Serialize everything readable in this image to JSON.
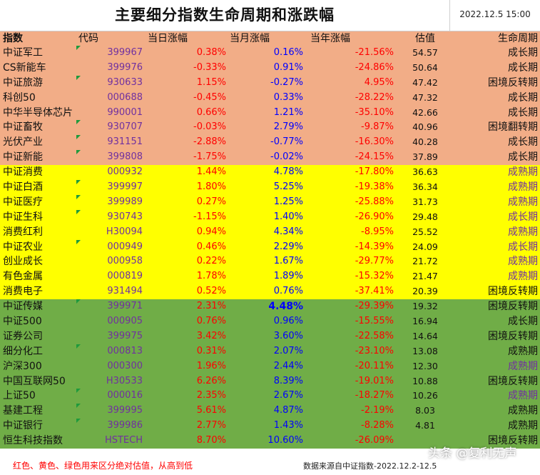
{
  "title": "主要细分指数生命周期和涨跌幅",
  "timestamp": "2022.12.5 15:00",
  "columns": {
    "name": "指数",
    "code": "代码",
    "day": "当日涨幅",
    "month": "当月涨幅",
    "year": "当年涨幅",
    "valuation": "估值",
    "cycle": "生命周期"
  },
  "colors": {
    "red_band": "#f2ad87",
    "yellow_band": "#ffff00",
    "green_band": "#70ad47",
    "code_text": "#7030a0",
    "up_text": "#ff0000",
    "month_text": "#0000ff"
  },
  "rows": [
    {
      "name": "中证军工",
      "code": "399967",
      "day": "0.38%",
      "month": "0.16%",
      "year": "-21.56%",
      "valuation": "54.57",
      "cycle": "成长期",
      "band": "red",
      "flag": true
    },
    {
      "name": "CS新能车",
      "code": "399976",
      "day": "-0.33%",
      "month": "0.91%",
      "year": "-24.86%",
      "valuation": "50.64",
      "cycle": "成长期",
      "band": "red"
    },
    {
      "name": "中证旅游",
      "code": "930633",
      "day": "1.15%",
      "month": "-0.27%",
      "year": "4.95%",
      "valuation": "47.42",
      "cycle": "困境反转期",
      "band": "red",
      "flag": true
    },
    {
      "name": "科创50",
      "code": "000688",
      "day": "-0.45%",
      "month": "0.33%",
      "year": "-28.22%",
      "valuation": "47.32",
      "cycle": "成长期",
      "band": "red"
    },
    {
      "name": "中华半导体芯片",
      "code": "990001",
      "day": "0.66%",
      "month": "1.21%",
      "year": "-35.10%",
      "valuation": "42.66",
      "cycle": "成长期",
      "band": "red"
    },
    {
      "name": "中证畜牧",
      "code": "930707",
      "day": "-0.03%",
      "month": "2.79%",
      "year": "-9.87%",
      "valuation": "40.96",
      "cycle": "困境翻转期",
      "band": "red",
      "flag": true
    },
    {
      "name": "光伏产业",
      "code": "931151",
      "day": "-2.88%",
      "month": "-0.77%",
      "year": "-16.30%",
      "valuation": "40.28",
      "cycle": "成长期",
      "band": "red",
      "flag": true
    },
    {
      "name": "中证新能",
      "code": "399808",
      "day": "-1.75%",
      "month": "-0.02%",
      "year": "-24.15%",
      "valuation": "37.89",
      "cycle": "成长期",
      "band": "red",
      "flag": true
    },
    {
      "name": "中证消费",
      "code": "000932",
      "day": "1.44%",
      "month": "4.78%",
      "year": "-17.80%",
      "valuation": "36.63",
      "cycle": "成熟期",
      "band": "yellow",
      "cycleColor": "purple"
    },
    {
      "name": "中证白酒",
      "code": "399997",
      "day": "1.80%",
      "month": "5.25%",
      "year": "-19.38%",
      "valuation": "36.34",
      "cycle": "成熟期",
      "band": "yellow",
      "cycleColor": "purple",
      "flag": true
    },
    {
      "name": "中证医疗",
      "code": "399989",
      "day": "0.27%",
      "month": "1.25%",
      "year": "-25.88%",
      "valuation": "31.73",
      "cycle": "成熟期",
      "band": "yellow",
      "cycleColor": "purple",
      "flag": true
    },
    {
      "name": "中证生科",
      "code": "930743",
      "day": "-1.15%",
      "month": "1.40%",
      "year": "-26.90%",
      "valuation": "29.48",
      "cycle": "成长期",
      "band": "yellow",
      "cycleColor": "purple",
      "flag": true
    },
    {
      "name": "消费红利",
      "code": "H30094",
      "day": "0.94%",
      "month": "4.34%",
      "year": "-8.95%",
      "valuation": "25.52",
      "cycle": "成熟期",
      "band": "yellow",
      "cycleColor": "purple"
    },
    {
      "name": "中证农业",
      "code": "000949",
      "day": "0.46%",
      "month": "2.29%",
      "year": "-14.39%",
      "valuation": "24.09",
      "cycle": "成长期",
      "band": "yellow",
      "cycleColor": "purple",
      "flag": true
    },
    {
      "name": "创业成长",
      "code": "000958",
      "day": "0.22%",
      "month": "1.67%",
      "year": "-29.77%",
      "valuation": "21.72",
      "cycle": "成熟期",
      "band": "yellow",
      "cycleColor": "purple"
    },
    {
      "name": "有色金属",
      "code": "000819",
      "day": "1.78%",
      "month": "1.89%",
      "year": "-15.32%",
      "valuation": "21.47",
      "cycle": "成熟期",
      "band": "yellow",
      "cycleColor": "purple"
    },
    {
      "name": "消费电子",
      "code": "931494",
      "day": "0.52%",
      "month": "0.76%",
      "year": "-37.41%",
      "valuation": "20.39",
      "cycle": "困境反转期",
      "band": "yellow"
    },
    {
      "name": "中证传媒",
      "code": "399971",
      "day": "2.31%",
      "month": "4.48%",
      "year": "-29.39%",
      "valuation": "19.32",
      "cycle": "困境反转期",
      "band": "green",
      "monthBig": true,
      "flag": true
    },
    {
      "name": "中证500",
      "code": "000905",
      "day": "0.76%",
      "month": "0.96%",
      "year": "-15.55%",
      "valuation": "16.94",
      "cycle": "成长期",
      "band": "green"
    },
    {
      "name": "证券公司",
      "code": "399975",
      "day": "3.42%",
      "month": "3.60%",
      "year": "-22.58%",
      "valuation": "14.64",
      "cycle": "困境反转期",
      "band": "green"
    },
    {
      "name": "细分化工",
      "code": "000813",
      "day": "0.31%",
      "month": "2.07%",
      "year": "-23.10%",
      "valuation": "13.08",
      "cycle": "成熟期",
      "band": "green",
      "flag": true
    },
    {
      "name": "沪深300",
      "code": "000300",
      "day": "1.96%",
      "month": "2.44%",
      "year": "-20.11%",
      "valuation": "12.30",
      "cycle": "成熟期",
      "band": "green",
      "cycleColor": "purple"
    },
    {
      "name": "中国互联网50",
      "code": "H30533",
      "day": "6.26%",
      "month": "8.39%",
      "year": "-19.01%",
      "valuation": "10.88",
      "cycle": "困境反转期",
      "band": "green"
    },
    {
      "name": "上证50",
      "code": "000016",
      "day": "2.35%",
      "month": "2.67%",
      "year": "-18.27%",
      "valuation": "10.26",
      "cycle": "成熟期",
      "band": "green",
      "cycleColor": "purple",
      "flag": true
    },
    {
      "name": "基建工程",
      "code": "399995",
      "day": "5.61%",
      "month": "4.87%",
      "year": "-2.19%",
      "valuation": "8.03",
      "cycle": "成熟期",
      "band": "green",
      "flag": true
    },
    {
      "name": "中证银行",
      "code": "399986",
      "day": "2.77%",
      "month": "1.43%",
      "year": "-8.28%",
      "valuation": "4.81",
      "cycle": "成熟期",
      "band": "green",
      "flag": true
    },
    {
      "name": "恒生科技指数",
      "code": "HSTECH",
      "day": "8.70%",
      "month": "10.60%",
      "year": "-26.09%",
      "valuation": "",
      "cycle": "困境反转期",
      "band": "green"
    }
  ],
  "footer": {
    "note": "红色、黄色、绿色用来区分绝对估值，从高到低",
    "source": "数据来源自中证指数-2022.12.2-12.5"
  },
  "watermark": "头条 @复利无声"
}
